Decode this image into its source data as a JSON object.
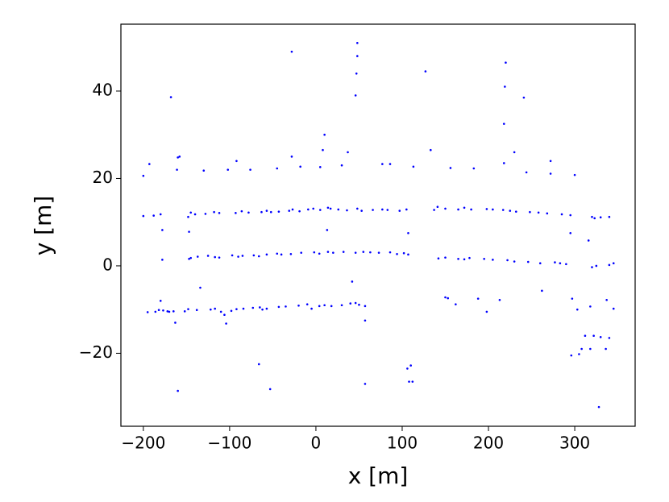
{
  "chart_data": {
    "type": "scatter",
    "x_label": "x [m]",
    "y_label": "y [m]",
    "color": "#0000ff",
    "x": [
      -28,
      48,
      48,
      47,
      46,
      127,
      220,
      219,
      241,
      -168,
      218,
      10,
      8,
      37,
      133,
      230,
      -28,
      -158,
      -160,
      -92,
      -193,
      -200,
      -161,
      -130,
      -102,
      -76,
      -45,
      -18,
      5,
      30,
      77,
      86,
      113,
      156,
      183,
      218,
      244,
      272,
      272,
      300,
      -200,
      -188,
      -180,
      -148,
      -145,
      -140,
      -128,
      -118,
      -112,
      -93,
      -86,
      -78,
      -63,
      -57,
      -52,
      -43,
      -31,
      -27,
      -19,
      -9,
      -3,
      5,
      14,
      17,
      26,
      36,
      48,
      53,
      66,
      77,
      83,
      97,
      105,
      137,
      141,
      150,
      165,
      172,
      180,
      198,
      205,
      217,
      225,
      232,
      248,
      258,
      268,
      285,
      295,
      320,
      323,
      330,
      340,
      -178,
      -147,
      -145,
      -137,
      -125,
      -117,
      -112,
      -97,
      -90,
      -85,
      -72,
      -66,
      -57,
      -45,
      -40,
      -29,
      -17,
      -2,
      4,
      14,
      20,
      32,
      46,
      55,
      63,
      73,
      86,
      94,
      102,
      107,
      142,
      150,
      165,
      172,
      178,
      195,
      205,
      222,
      230,
      246,
      260,
      277,
      283,
      290,
      320,
      325,
      340,
      345,
      -195,
      -186,
      -182,
      -177,
      -172,
      -170,
      -165,
      -152,
      -148,
      -138,
      -122,
      -117,
      -110,
      -106,
      -98,
      -92,
      -84,
      -73,
      -65,
      -62,
      -57,
      -43,
      -35,
      -20,
      -10,
      -5,
      4,
      10,
      18,
      30,
      40,
      46,
      50,
      57,
      150,
      153,
      162,
      188,
      198,
      213,
      297,
      303,
      318,
      337,
      345,
      -160,
      -66,
      -53,
      57,
      57,
      -104,
      -180,
      -163,
      42,
      -134,
      106,
      108,
      112,
      110,
      107,
      13,
      -147,
      -178,
      295,
      316,
      262,
      312,
      322,
      330,
      340,
      308,
      305,
      296,
      318,
      336,
      328
    ],
    "y": [
      49,
      51,
      48,
      44,
      39,
      44.5,
      46.5,
      41,
      38.5,
      38.6,
      32.5,
      30,
      26.5,
      26,
      26.5,
      26,
      25,
      25,
      24.8,
      24,
      23.3,
      20.6,
      22,
      21.8,
      22,
      22,
      22.3,
      22.7,
      22.6,
      23,
      23.3,
      23.3,
      22.7,
      22.4,
      22.3,
      23.5,
      21.4,
      24,
      21.1,
      20.8,
      11.4,
      11.5,
      11.8,
      11.2,
      12.2,
      11.8,
      11.9,
      12.3,
      12.1,
      12.1,
      12.5,
      12.2,
      12.3,
      12.6,
      12.3,
      12.4,
      12.6,
      12.9,
      12.5,
      12.9,
      13.1,
      12.8,
      13.3,
      13.1,
      12.9,
      12.7,
      13.1,
      12.6,
      12.8,
      12.9,
      12.8,
      12.6,
      12.9,
      12.8,
      13.5,
      13.1,
      12.9,
      13.3,
      12.9,
      13,
      12.9,
      12.8,
      12.6,
      12.4,
      12.3,
      12.2,
      12,
      11.8,
      11.6,
      11.2,
      10.9,
      11.1,
      11.2,
      1.4,
      1.6,
      1.8,
      2.1,
      2.3,
      2,
      1.9,
      2.4,
      2.1,
      2.3,
      2.4,
      2.2,
      2.6,
      2.8,
      2.6,
      2.7,
      3,
      3.1,
      2.8,
      3.2,
      3,
      3.2,
      3,
      3.2,
      3.1,
      3,
      3.1,
      2.7,
      2.9,
      2.6,
      1.7,
      1.9,
      1.6,
      1.5,
      1.8,
      1.6,
      1.4,
      1.3,
      1,
      0.9,
      0.6,
      0.8,
      0.6,
      0.4,
      -0.3,
      0,
      0.2,
      0.6,
      -10.6,
      -10.5,
      -10.1,
      -10.2,
      -10.4,
      -10.5,
      -10.4,
      -10.4,
      -9.9,
      -10.1,
      -10,
      -9.8,
      -10.5,
      -11.2,
      -10.3,
      -9.9,
      -9.8,
      -9.6,
      -9.5,
      -10,
      -9.8,
      -9.4,
      -9.3,
      -9.1,
      -8.8,
      -9.8,
      -9.2,
      -9,
      -9.2,
      -9,
      -8.6,
      -8.5,
      -8.9,
      -9.2,
      -7.2,
      -7.4,
      -8.8,
      -7.5,
      -10.5,
      -7.8,
      -7.5,
      -10,
      -9.3,
      -7.8,
      -9.8,
      -28.6,
      -22.5,
      -28.2,
      -27,
      -12.5,
      -13.2,
      -8,
      -13,
      -3.6,
      -5,
      -23.5,
      -26.5,
      -26.5,
      -22.8,
      7.5,
      8.2,
      7.8,
      8.2,
      7.5,
      5.8,
      -5.7,
      -16,
      -16,
      -16.3,
      -16.5,
      -19,
      -20.2,
      -20.5,
      -19,
      -19,
      -32.3
    ],
    "xlim": [
      -226,
      370
    ],
    "ylim": [
      -36.7,
      55.3
    ],
    "xticks": [
      {
        "value": -200,
        "label": "−200"
      },
      {
        "value": -100,
        "label": "−100"
      },
      0,
      100,
      200,
      300
    ],
    "yticks": [
      {
        "value": -20,
        "label": "−20"
      },
      0,
      20,
      40
    ]
  }
}
